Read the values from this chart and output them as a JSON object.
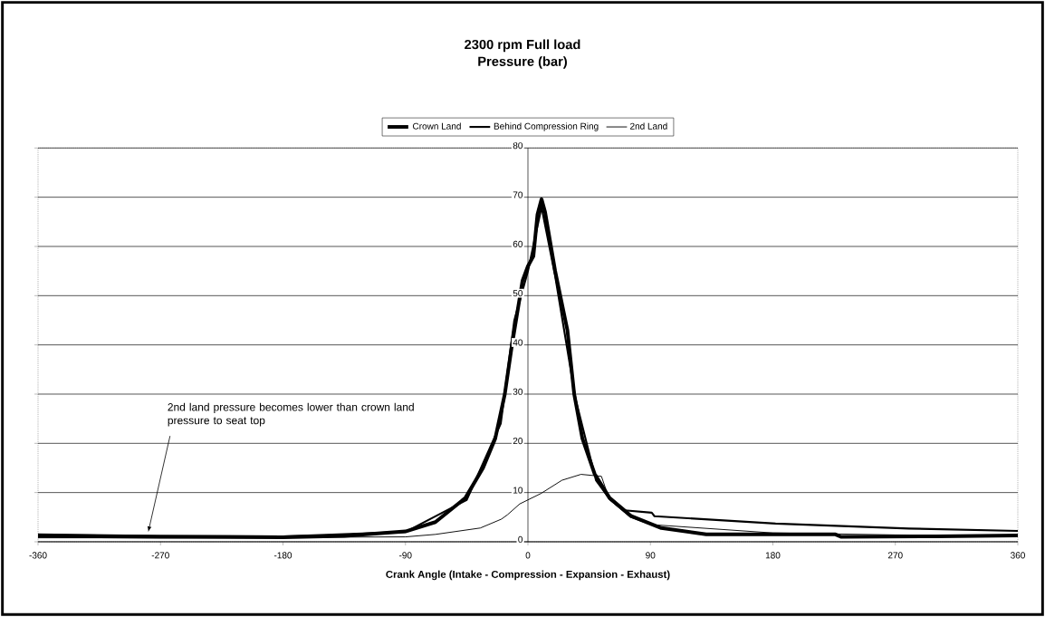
{
  "chart_data": {
    "type": "line",
    "title": "2300 rpm Full load",
    "subtitle": "Pressure (bar)",
    "xlabel": "Crank Angle (Intake - Compression - Expansion - Exhaust)",
    "xlim": [
      -360,
      360
    ],
    "xticks": [
      -360,
      -270,
      -180,
      -90,
      0,
      90,
      180,
      270,
      360
    ],
    "ylim": [
      0,
      80
    ],
    "yticks": [
      0,
      10,
      20,
      30,
      40,
      50,
      60,
      70,
      80
    ],
    "grid": "y",
    "legend": "top",
    "line_style": "solid",
    "marker": "none",
    "annotations": [
      {
        "text": "2nd land pressure becomes lower than crown land pressure to seat top",
        "x": -279,
        "y": 2
      }
    ],
    "series": [
      {
        "name": "Crown Land",
        "color": "#000000",
        "x": [
          -360,
          -270,
          -180,
          -135,
          -90,
          -68,
          -46,
          -33,
          -24,
          -17,
          -12,
          -4,
          0,
          4,
          7,
          10,
          12.6,
          20,
          29,
          34,
          40,
          49,
          60,
          76,
          98,
          131,
          180,
          226,
          230,
          300,
          360
        ],
        "values": [
          1.2,
          1.0,
          0.9,
          1.2,
          2.1,
          4,
          8.9,
          15,
          21,
          30,
          39.5,
          53,
          56,
          58,
          66.5,
          69.6,
          67,
          55,
          43,
          30,
          21,
          13.8,
          8.9,
          5.2,
          2.8,
          1.5,
          1.5,
          1.5,
          1.0,
          1.1,
          1.3
        ]
      },
      {
        "name": "Behind Compression Ring",
        "color": "#000000",
        "x": [
          -360,
          -270,
          -180,
          -90,
          -45,
          -20,
          -10,
          0,
          10,
          20,
          35,
          50,
          60,
          71,
          91,
          93,
          182,
          280,
          360
        ],
        "values": [
          1.5,
          1.2,
          1.1,
          2.0,
          8.5,
          24,
          45,
          55,
          68,
          54,
          29,
          12.5,
          8.7,
          6.4,
          5.9,
          5.2,
          3.7,
          2.7,
          2.2
        ]
      },
      {
        "name": "2nd  Land",
        "color": "#000000",
        "x": [
          -360,
          -270,
          -180,
          -90,
          -68,
          -35,
          -19.5,
          -15,
          -6,
          9.5,
          25,
          39,
          54,
          60,
          75,
          90,
          180,
          270,
          360
        ],
        "values": [
          0.8,
          0.8,
          0.9,
          1.0,
          1.5,
          2.8,
          4.6,
          5.5,
          7.7,
          9.8,
          12.5,
          13.7,
          13.3,
          8.5,
          5.0,
          3.5,
          1.8,
          1.4,
          1.2
        ]
      }
    ]
  }
}
